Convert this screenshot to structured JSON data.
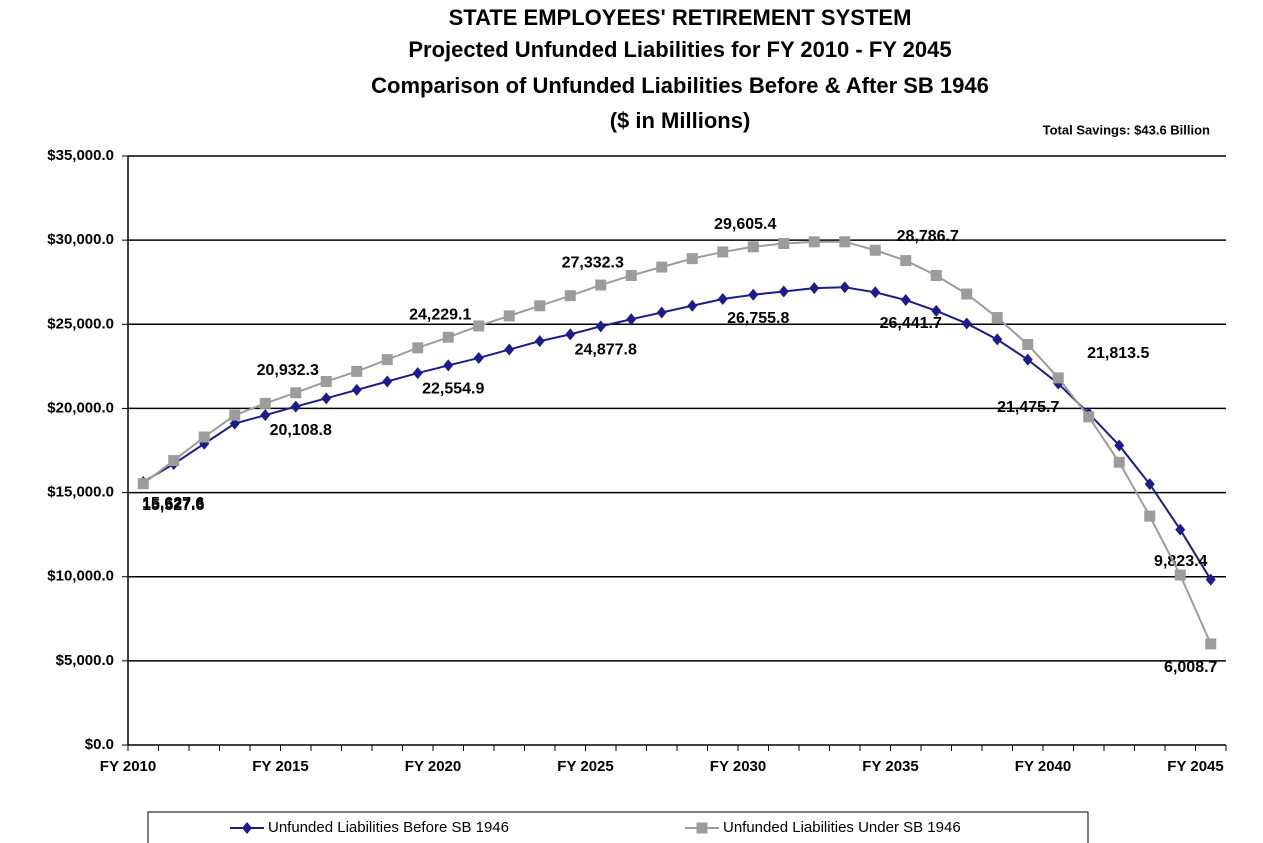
{
  "chart_data": {
    "type": "line",
    "title": "STATE EMPLOYEES' RETIREMENT SYSTEM",
    "subtitle": [
      "Projected Unfunded Liabilities for FY 2010 - FY 2045",
      "Comparison of Unfunded Liabilities Before & After SB 1946",
      "($ in Millions)"
    ],
    "annotation": "Total Savings: $43.6 Billion",
    "categories": [
      "FY 2010",
      null,
      null,
      null,
      null,
      "FY 2015",
      null,
      null,
      null,
      null,
      "FY 2020",
      null,
      null,
      null,
      null,
      "FY 2025",
      null,
      null,
      null,
      null,
      "FY 2030",
      null,
      null,
      null,
      null,
      "FY 2035",
      null,
      null,
      null,
      null,
      "FY 2040",
      null,
      null,
      null,
      null,
      "FY 2045"
    ],
    "series": [
      {
        "name": "Unfunded Liabilities Before SB 1946",
        "color": "#1c1c8c",
        "marker": "diamond",
        "values": [
          15627.6,
          16700,
          17900,
          19100,
          19600,
          20108.8,
          20600,
          21100,
          21600,
          22100,
          22554.9,
          23000,
          23500,
          24000,
          24400,
          24877.8,
          25300,
          25700,
          26100,
          26500,
          26755.8,
          26950,
          27150,
          27200,
          26900,
          26441.7,
          25800,
          25050,
          24100,
          22900,
          21475.7,
          19700,
          17800,
          15500,
          12800,
          9823.4
        ],
        "value_labels": [
          "15,627.6",
          null,
          null,
          null,
          null,
          "20,108.8",
          null,
          null,
          null,
          null,
          "22,554.9",
          null,
          null,
          null,
          null,
          "24,877.8",
          null,
          null,
          null,
          null,
          "26,755.8",
          null,
          null,
          null,
          null,
          "26,441.7",
          null,
          null,
          null,
          null,
          "21,475.7",
          null,
          null,
          null,
          null,
          "9,823.4"
        ]
      },
      {
        "name": "Unfunded Liabilities Under SB 1946",
        "color": "#9c9c9c",
        "marker": "square",
        "values": [
          15527.6,
          16900,
          18300,
          19600,
          20300,
          20932.3,
          21600,
          22200,
          22900,
          23600,
          24229.1,
          24900,
          25500,
          26100,
          26700,
          27332.3,
          27900,
          28400,
          28900,
          29300,
          29605.4,
          29800,
          29900,
          29900,
          29400,
          28786.7,
          27900,
          26800,
          25400,
          23800,
          21813.5,
          19500,
          16800,
          13600,
          10100,
          6008.7
        ],
        "value_labels": [
          "15,527.6",
          null,
          null,
          null,
          null,
          "20,932.3",
          null,
          null,
          null,
          null,
          "24,229.1",
          null,
          null,
          null,
          null,
          "27,332.3",
          null,
          null,
          null,
          null,
          "29,605.4",
          null,
          null,
          null,
          null,
          "28,786.7",
          null,
          null,
          null,
          null,
          "21,813.5",
          null,
          null,
          null,
          null,
          "6,008.7"
        ]
      }
    ],
    "ylim": [
      0,
      35000
    ],
    "yticks": [
      {
        "value": 0,
        "label": "$0.0"
      },
      {
        "value": 5000,
        "label": "$5,000.0"
      },
      {
        "value": 10000,
        "label": "$10,000.0"
      },
      {
        "value": 15000,
        "label": "$15,000.0"
      },
      {
        "value": 20000,
        "label": "$20,000.0"
      },
      {
        "value": 25000,
        "label": "$25,000.0"
      },
      {
        "value": 30000,
        "label": "$30,000.0"
      },
      {
        "value": 35000,
        "label": "$35,000.0"
      }
    ],
    "grid": true,
    "legend": "bottom"
  }
}
